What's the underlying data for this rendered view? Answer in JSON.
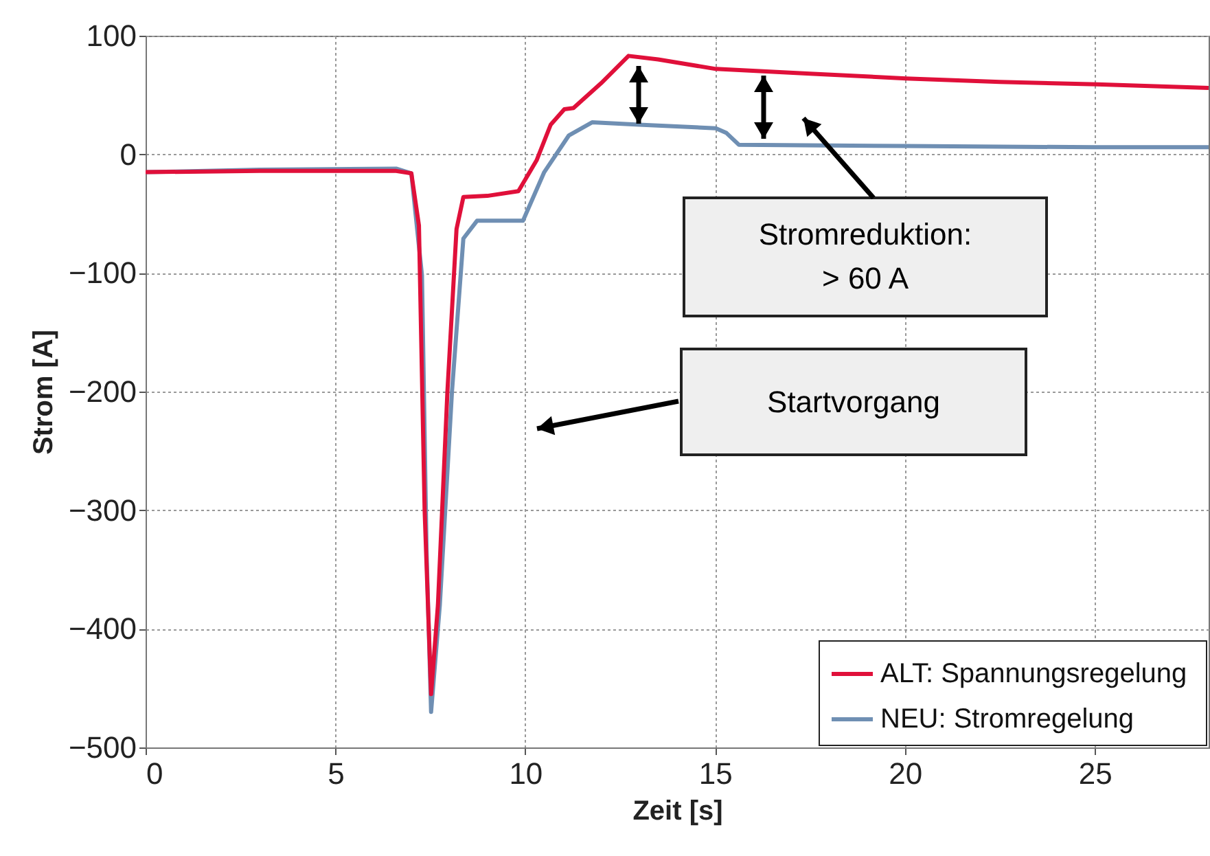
{
  "chart_data": {
    "type": "line",
    "xlabel": "Zeit [s]",
    "ylabel": "Strom [A]",
    "xlim": [
      0,
      28
    ],
    "xticks": [
      0,
      5,
      10,
      15,
      20,
      25
    ],
    "ylim": [
      -500,
      100
    ],
    "yticks": [
      -500,
      -400,
      -300,
      -200,
      -100,
      0,
      100
    ],
    "grid": true,
    "legend": "bottom right",
    "line_style": "solid",
    "annotations": [
      "Stromreduktion:\n> 60 A",
      "Startvorgang"
    ],
    "series": [
      {
        "name": "ALT:  Spannungsregelung",
        "color": "#e0103a",
        "x": [
          0,
          3,
          6.6,
          7.0,
          7.2,
          7.35,
          7.52,
          7.7,
          7.95,
          8.19,
          8.37,
          9,
          9.82,
          10.3,
          10.67,
          11.03,
          11.27,
          12,
          12.72,
          13.5,
          15.02,
          17.5,
          20.03,
          22.5,
          25.06,
          28
        ],
        "values": [
          -15,
          -14,
          -14,
          -16,
          -60,
          -300,
          -455,
          -380,
          -200,
          -63,
          -36,
          -35,
          -31,
          -5,
          25,
          38,
          39,
          60,
          83,
          80,
          72,
          68,
          64,
          61,
          59,
          56
        ]
      },
      {
        "name": "NEU: Stromregelung",
        "color": "#6f8fb3",
        "x": [
          0,
          3,
          6.6,
          7.0,
          7.28,
          7.4,
          7.52,
          7.75,
          8.07,
          8.37,
          8.73,
          9.94,
          10.5,
          11.15,
          11.76,
          13,
          15.02,
          15.3,
          15.63,
          20,
          25,
          28
        ],
        "values": [
          -15,
          -13,
          -12,
          -16,
          -102,
          -334,
          -470,
          -380,
          -200,
          -71,
          -56,
          -56,
          -15,
          16,
          27,
          25,
          22,
          18,
          8,
          7,
          6,
          6
        ]
      }
    ]
  }
}
